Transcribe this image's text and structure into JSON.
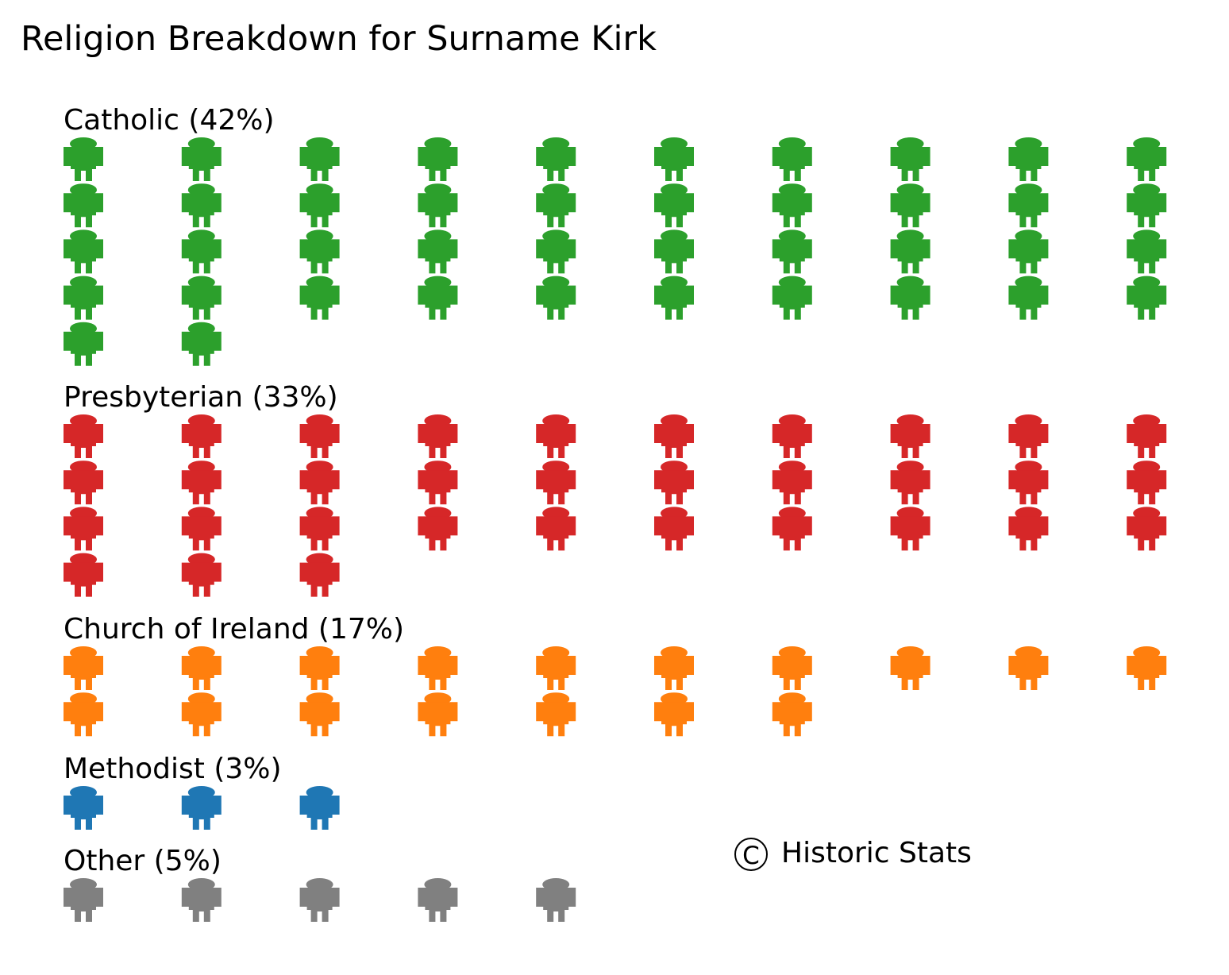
{
  "chart_data": {
    "type": "pictogram",
    "title": "Religion Breakdown for Surname Kirk",
    "unit": "one icon per 1%",
    "icon": "person-icon",
    "icons_per_row": 10,
    "groups": [
      {
        "label": "Catholic (42%)",
        "name": "Catholic",
        "value": 42,
        "color": "#2ca02c"
      },
      {
        "label": "Presbyterian (33%)",
        "name": "Presbyterian",
        "value": 33,
        "color": "#d62728"
      },
      {
        "label": "Church of Ireland (17%)",
        "name": "Church of Ireland",
        "value": 17,
        "color": "#ff7f0e"
      },
      {
        "label": "Methodist (3%)",
        "name": "Methodist",
        "value": 3,
        "color": "#1f77b4"
      },
      {
        "label": "Other (5%)",
        "name": "Other",
        "value": 5,
        "color": "#808080"
      }
    ],
    "credit": {
      "symbol": "C",
      "text": "Historic Stats"
    }
  }
}
